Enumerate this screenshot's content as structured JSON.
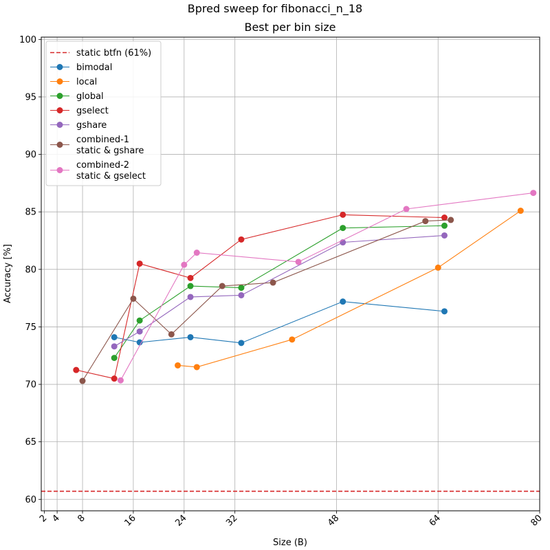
{
  "chart_data": {
    "type": "line",
    "suptitle": "Bpred sweep for fibonacci_n_18",
    "title": "Best per bin size",
    "xlabel": "Size (B)",
    "ylabel": "Accuracy [%]",
    "xlim": [
      1.5,
      80
    ],
    "ylim": [
      59,
      100.2
    ],
    "xticks": [
      2,
      4,
      8,
      16,
      24,
      32,
      48,
      64,
      80
    ],
    "yticks": [
      60,
      65,
      70,
      75,
      80,
      85,
      90,
      95,
      100
    ],
    "grid": true,
    "legend_position": "top-left",
    "reference_line": {
      "label": "static btfn (61%)",
      "y": 60.7,
      "color": "#d62728"
    },
    "series": [
      {
        "name": "bimodal",
        "color": "#1f77b4",
        "points": [
          [
            13,
            74.1
          ],
          [
            17,
            73.65
          ],
          [
            25,
            74.1
          ],
          [
            33,
            73.6
          ],
          [
            49,
            77.2
          ],
          [
            65,
            76.35
          ]
        ]
      },
      {
        "name": "local",
        "color": "#ff7f0e",
        "points": [
          [
            23,
            71.65
          ],
          [
            26,
            71.5
          ],
          [
            41,
            73.9
          ],
          [
            64,
            80.15
          ],
          [
            77,
            85.1
          ]
        ]
      },
      {
        "name": "global",
        "color": "#2ca02c",
        "points": [
          [
            13,
            72.3
          ],
          [
            17,
            75.55
          ],
          [
            25,
            78.55
          ],
          [
            33,
            78.4
          ],
          [
            49,
            83.6
          ],
          [
            65,
            83.8
          ]
        ]
      },
      {
        "name": "gselect",
        "color": "#d62728",
        "points": [
          [
            7,
            71.25
          ],
          [
            13,
            70.5
          ],
          [
            17,
            80.5
          ],
          [
            25,
            79.25
          ],
          [
            33,
            82.6
          ],
          [
            49,
            84.75
          ],
          [
            65,
            84.5
          ]
        ]
      },
      {
        "name": "gshare",
        "color": "#9467bd",
        "points": [
          [
            13,
            73.3
          ],
          [
            17,
            74.6
          ],
          [
            25,
            77.6
          ],
          [
            33,
            77.75
          ],
          [
            49,
            82.35
          ],
          [
            65,
            82.95
          ]
        ]
      },
      {
        "name": "combined-1\nstatic & gshare",
        "color": "#8c564b",
        "points": [
          [
            8,
            70.3
          ],
          [
            16,
            77.45
          ],
          [
            22,
            74.35
          ],
          [
            30,
            78.55
          ],
          [
            38,
            78.85
          ],
          [
            62,
            84.2
          ],
          [
            66,
            84.3
          ]
        ]
      },
      {
        "name": "combined-2\nstatic & gselect",
        "color": "#e377c2",
        "points": [
          [
            14,
            70.35
          ],
          [
            24,
            80.4
          ],
          [
            26,
            81.45
          ],
          [
            42,
            80.65
          ],
          [
            59,
            85.25
          ],
          [
            79,
            86.65
          ]
        ]
      }
    ]
  }
}
